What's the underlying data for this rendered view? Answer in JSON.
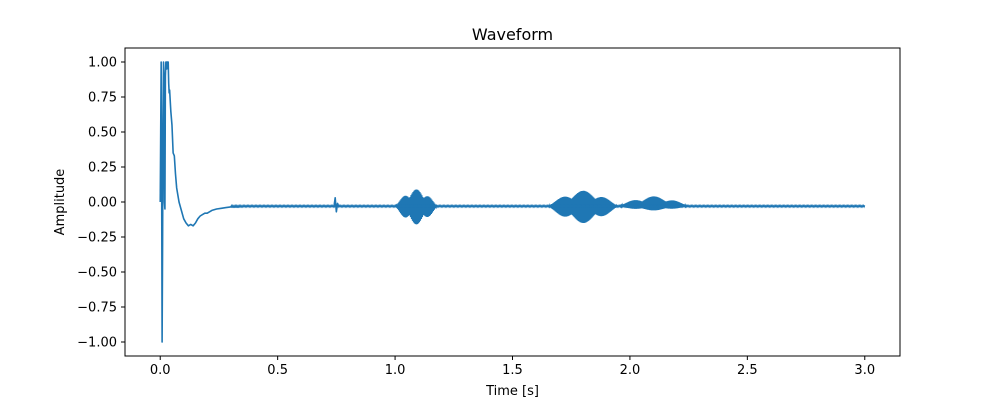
{
  "chart_data": {
    "type": "line",
    "title": "Waveform",
    "xlabel": "Time [s]",
    "ylabel": "Amplitude",
    "xlim": [
      -0.15,
      3.15
    ],
    "ylim": [
      -1.1,
      1.1
    ],
    "xticks": [
      0.0,
      0.5,
      1.0,
      1.5,
      2.0,
      2.5,
      3.0
    ],
    "xtick_labels": [
      "0.0",
      "0.5",
      "1.0",
      "1.5",
      "2.0",
      "2.5",
      "3.0"
    ],
    "yticks": [
      1.0,
      0.75,
      0.5,
      0.25,
      0.0,
      -0.25,
      -0.5,
      -0.75,
      -1.0
    ],
    "ytick_labels": [
      "1.00",
      "0.75",
      "0.50",
      "0.25",
      "0.00",
      "−0.25",
      "−0.50",
      "−0.75",
      "−1.00"
    ],
    "grid": false,
    "line_color": "#1f77b4",
    "series": [
      {
        "x": [
          0.0,
          0.002,
          0.004,
          0.006,
          0.008,
          0.01,
          0.012,
          0.014,
          0.016,
          0.018,
          0.02,
          0.022,
          0.024,
          0.026,
          0.028,
          0.03,
          0.032,
          0.034,
          0.036,
          0.038,
          0.04,
          0.045,
          0.05,
          0.055,
          0.06,
          0.065,
          0.07,
          0.075,
          0.08,
          0.09,
          0.1,
          0.11,
          0.12,
          0.13,
          0.14,
          0.15,
          0.16,
          0.17,
          0.18,
          0.19,
          0.2,
          0.22,
          0.24,
          0.26,
          0.28,
          0.3,
          0.33,
          0.36,
          0.4,
          0.45,
          0.5,
          0.55,
          0.6,
          0.65,
          0.7,
          0.74,
          0.745,
          0.75,
          0.755,
          0.76,
          0.8,
          0.85,
          0.9,
          0.95,
          1.0,
          1.05,
          1.1,
          1.15,
          1.2,
          1.3,
          1.4,
          1.5,
          1.6,
          1.65,
          1.7,
          1.75,
          1.8,
          1.85,
          1.9,
          1.95,
          2.0,
          2.05,
          2.1,
          2.15,
          2.2,
          2.25,
          2.3,
          2.4,
          2.5,
          2.6,
          2.7,
          2.8,
          2.9,
          3.0
        ],
        "y": [
          0.0,
          0.5,
          1.0,
          0.2,
          -1.0,
          -0.3,
          0.6,
          1.0,
          0.9,
          0.0,
          -0.05,
          0.9,
          1.0,
          1.0,
          0.95,
          1.0,
          1.0,
          1.0,
          0.85,
          0.78,
          0.8,
          0.65,
          0.55,
          0.35,
          0.33,
          0.2,
          0.1,
          0.05,
          0.0,
          -0.06,
          -0.12,
          -0.15,
          -0.17,
          -0.16,
          -0.17,
          -0.15,
          -0.12,
          -0.1,
          -0.09,
          -0.08,
          -0.08,
          -0.06,
          -0.05,
          -0.045,
          -0.04,
          -0.035,
          -0.035,
          -0.03,
          -0.03,
          -0.03,
          -0.03,
          -0.03,
          -0.03,
          -0.03,
          -0.03,
          -0.03,
          0.03,
          -0.07,
          -0.01,
          -0.03,
          -0.03,
          -0.03,
          -0.03,
          -0.03,
          -0.03,
          -0.03,
          -0.03,
          -0.03,
          -0.03,
          -0.03,
          -0.03,
          -0.03,
          -0.03,
          -0.03,
          -0.03,
          -0.03,
          -0.03,
          -0.03,
          -0.03,
          -0.03,
          -0.03,
          -0.03,
          -0.03,
          -0.03,
          -0.03,
          -0.03,
          -0.03,
          -0.03,
          -0.03,
          -0.03,
          -0.03,
          -0.03,
          -0.03,
          -0.03
        ],
        "bursts": [
          {
            "t_start": 1.0,
            "t_end": 1.18,
            "peak_amplitude": 0.09,
            "trough_amplitude": -0.16
          },
          {
            "t_start": 1.65,
            "t_end": 1.95,
            "peak_amplitude": 0.08,
            "trough_amplitude": -0.15
          },
          {
            "t_start": 1.95,
            "t_end": 2.25,
            "peak_amplitude": 0.04,
            "trough_amplitude": -0.06
          }
        ]
      }
    ]
  }
}
